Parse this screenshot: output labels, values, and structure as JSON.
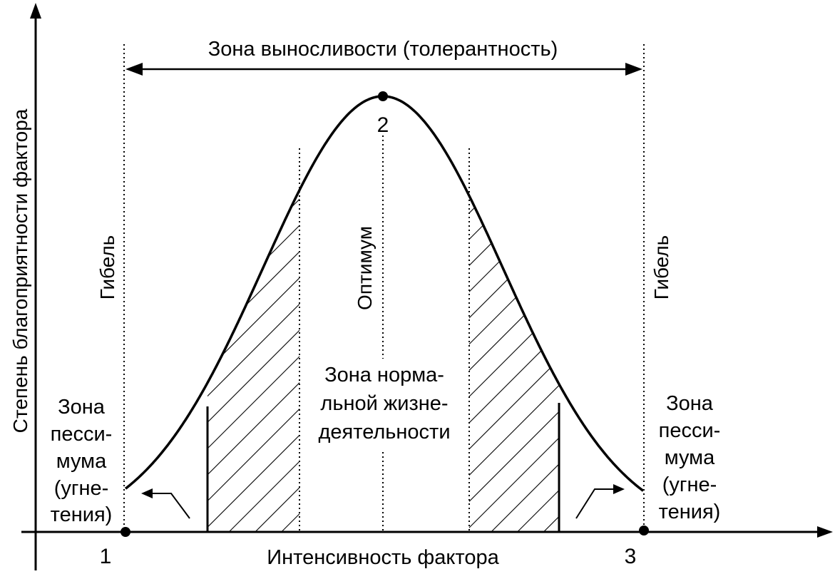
{
  "colors": {
    "ink": "#000000",
    "background": "#ffffff"
  },
  "axes": {
    "y_label": "Степень благоприятности фактора",
    "x_label": "Интенсивность фактора"
  },
  "tolerance_zone": {
    "label": "Зона выносливости (толерантность)"
  },
  "points": {
    "left": "1",
    "optimum": "2",
    "right": "3"
  },
  "vertical_labels": {
    "death_left": "Гибель",
    "optimum": "Оптимум",
    "death_right": "Гибель"
  },
  "normal_zone": {
    "lines": [
      "Зона норма-",
      "льной жизне-",
      "деятельности"
    ]
  },
  "pessimum_left": {
    "lines": [
      "Зона",
      "песси-",
      "мума",
      "(угне-",
      "тения)"
    ]
  },
  "pessimum_right": {
    "lines": [
      "Зона",
      "песси-",
      "мума",
      "(угне-",
      "тения)"
    ]
  }
}
